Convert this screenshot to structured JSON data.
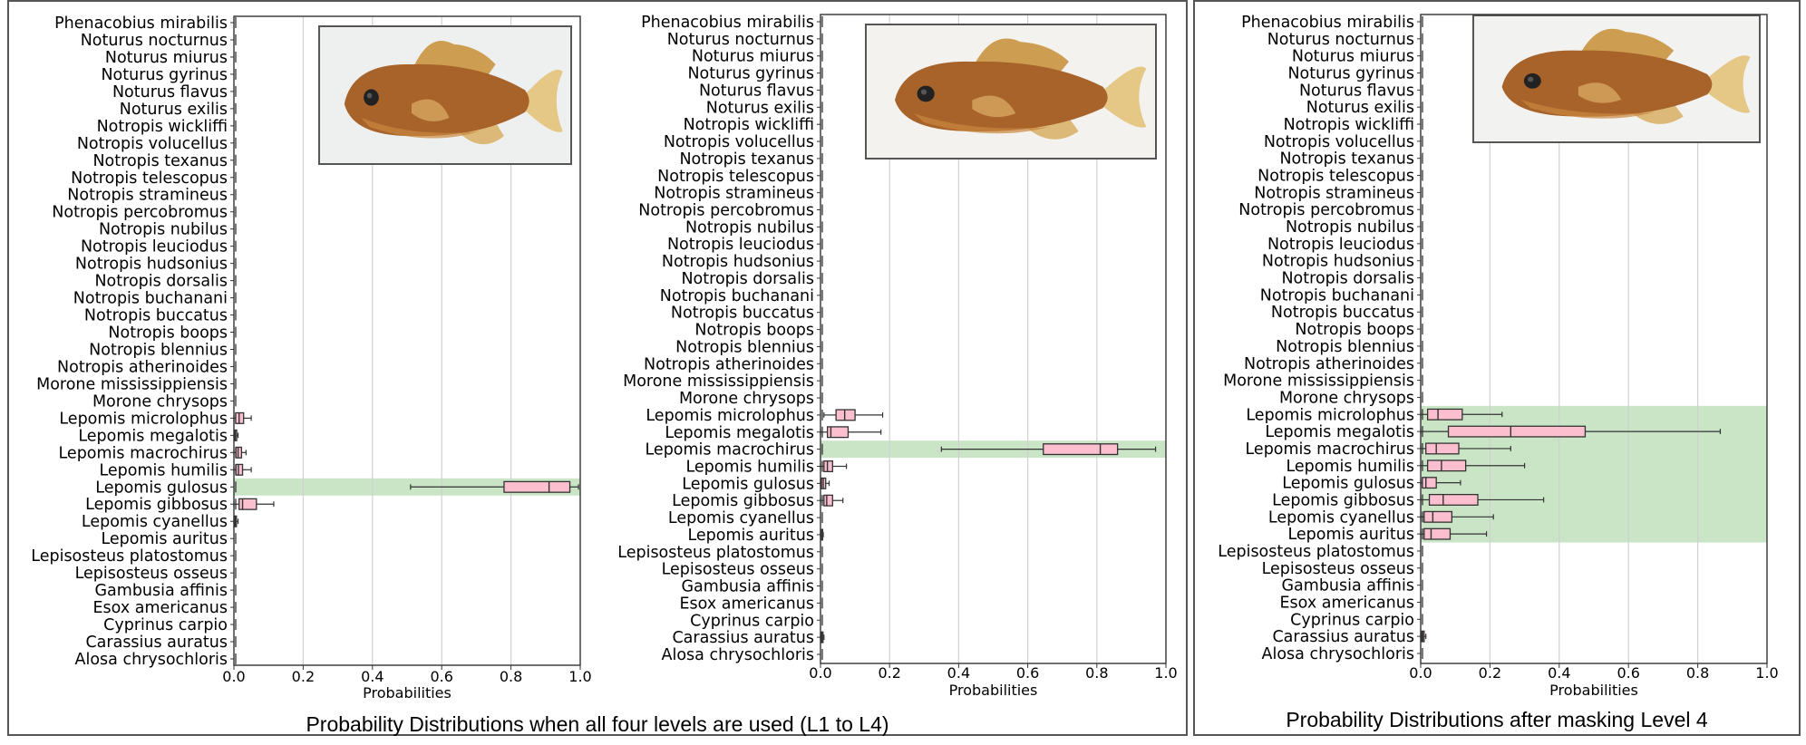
{
  "captions": {
    "left": "Probability Distributions when all four levels are used (L1 to L4)",
    "right": "Probability Distributions after masking Level 4"
  },
  "colors": {
    "box_fill": "#fcbfcf",
    "highlight": "#c9e5c6",
    "grid": "#d0d0d0"
  },
  "species": [
    "Phenacobius mirabilis",
    "Noturus nocturnus",
    "Noturus miurus",
    "Noturus gyrinus",
    "Noturus flavus",
    "Noturus exilis",
    "Notropis wickliffi",
    "Notropis volucellus",
    "Notropis texanus",
    "Notropis telescopus",
    "Notropis stramineus",
    "Notropis percobromus",
    "Notropis nubilus",
    "Notropis leuciodus",
    "Notropis hudsonius",
    "Notropis dorsalis",
    "Notropis buchanani",
    "Notropis buccatus",
    "Notropis boops",
    "Notropis blennius",
    "Notropis atherinoides",
    "Morone mississippiensis",
    "Morone chrysops",
    "Lepomis microlophus",
    "Lepomis megalotis",
    "Lepomis macrochirus",
    "Lepomis humilis",
    "Lepomis gulosus",
    "Lepomis gibbosus",
    "Lepomis cyanellus",
    "Lepomis auritus",
    "Lepisosteus platostomus",
    "Lepisosteus osseus",
    "Gambusia affinis",
    "Esox americanus",
    "Cyprinus carpio",
    "Carassius auratus",
    "Alosa chrysochloris"
  ],
  "chart_data": [
    {
      "type": "boxplot",
      "orientation": "horizontal",
      "xlabel": "Probabilities",
      "xlim": [
        0,
        1
      ],
      "xticks": [
        "0.0",
        "0.2",
        "0.4",
        "0.6",
        "0.8",
        "1.0"
      ],
      "grid": "vertical",
      "highlighted": [
        "Lepomis gulosus"
      ],
      "boxes": [
        {
          "species": "Lepomis microlophus",
          "whislo": 0.0,
          "q1": 0.005,
          "med": 0.015,
          "q3": 0.028,
          "whishi": 0.05
        },
        {
          "species": "Lepomis megalotis",
          "whislo": 0.0,
          "q1": 0.002,
          "med": 0.004,
          "q3": 0.008,
          "whishi": 0.012
        },
        {
          "species": "Lepomis macrochirus",
          "whislo": 0.0,
          "q1": 0.006,
          "med": 0.012,
          "q3": 0.022,
          "whishi": 0.035
        },
        {
          "species": "Lepomis humilis",
          "whislo": 0.0,
          "q1": 0.006,
          "med": 0.013,
          "q3": 0.025,
          "whishi": 0.05
        },
        {
          "species": "Lepomis gulosus",
          "whislo": 0.51,
          "q1": 0.78,
          "med": 0.91,
          "q3": 0.97,
          "whishi": 0.995
        },
        {
          "species": "Lepomis gibbosus",
          "whislo": 0.0,
          "q1": 0.015,
          "med": 0.025,
          "q3": 0.065,
          "whishi": 0.115
        },
        {
          "species": "Lepomis cyanellus",
          "whislo": 0.0,
          "q1": 0.002,
          "med": 0.004,
          "q3": 0.007,
          "whishi": 0.012
        }
      ]
    },
    {
      "type": "boxplot",
      "orientation": "horizontal",
      "xlabel": "Probabilities",
      "xlim": [
        0,
        1
      ],
      "xticks": [
        "0.0",
        "0.2",
        "0.4",
        "0.6",
        "0.8",
        "1.0"
      ],
      "grid": "vertical",
      "highlighted": [
        "Lepomis macrochirus"
      ],
      "boxes": [
        {
          "species": "Lepomis microlophus",
          "whislo": 0.01,
          "q1": 0.045,
          "med": 0.07,
          "q3": 0.1,
          "whishi": 0.18
        },
        {
          "species": "Lepomis megalotis",
          "whislo": 0.0,
          "q1": 0.02,
          "med": 0.03,
          "q3": 0.08,
          "whishi": 0.175
        },
        {
          "species": "Lepomis macrochirus",
          "whislo": 0.35,
          "q1": 0.645,
          "med": 0.81,
          "q3": 0.86,
          "whishi": 0.97
        },
        {
          "species": "Lepomis humilis",
          "whislo": 0.0,
          "q1": 0.01,
          "med": 0.02,
          "q3": 0.035,
          "whishi": 0.075
        },
        {
          "species": "Lepomis gulosus",
          "whislo": 0.0,
          "q1": 0.003,
          "med": 0.008,
          "q3": 0.015,
          "whishi": 0.025
        },
        {
          "species": "Lepomis gibbosus",
          "whislo": 0.0,
          "q1": 0.01,
          "med": 0.018,
          "q3": 0.035,
          "whishi": 0.065
        },
        {
          "species": "Lepomis auritus",
          "whislo": 0.0,
          "q1": 0.001,
          "med": 0.003,
          "q3": 0.005,
          "whishi": 0.008
        },
        {
          "species": "Carassius auratus",
          "whislo": 0.0,
          "q1": 0.002,
          "med": 0.004,
          "q3": 0.007,
          "whishi": 0.01
        }
      ]
    },
    {
      "type": "boxplot",
      "orientation": "horizontal",
      "xlabel": "Probabilities",
      "xlim": [
        0,
        1
      ],
      "xticks": [
        "0.0",
        "0.2",
        "0.4",
        "0.6",
        "0.8",
        "1.0"
      ],
      "grid": "vertical",
      "highlighted": [
        "Lepomis microlophus",
        "Lepomis megalotis",
        "Lepomis macrochirus",
        "Lepomis humilis",
        "Lepomis gulosus",
        "Lepomis gibbosus",
        "Lepomis cyanellus",
        "Lepomis auritus"
      ],
      "boxes": [
        {
          "species": "Lepomis microlophus",
          "whislo": 0.0,
          "q1": 0.02,
          "med": 0.05,
          "q3": 0.12,
          "whishi": 0.235
        },
        {
          "species": "Lepomis megalotis",
          "whislo": 0.0,
          "q1": 0.08,
          "med": 0.26,
          "q3": 0.475,
          "whishi": 0.865
        },
        {
          "species": "Lepomis macrochirus",
          "whislo": 0.0,
          "q1": 0.015,
          "med": 0.045,
          "q3": 0.11,
          "whishi": 0.26
        },
        {
          "species": "Lepomis humilis",
          "whislo": 0.0,
          "q1": 0.02,
          "med": 0.06,
          "q3": 0.13,
          "whishi": 0.3
        },
        {
          "species": "Lepomis gulosus",
          "whislo": 0.0,
          "q1": 0.005,
          "med": 0.015,
          "q3": 0.045,
          "whishi": 0.115
        },
        {
          "species": "Lepomis gibbosus",
          "whislo": 0.0,
          "q1": 0.025,
          "med": 0.065,
          "q3": 0.165,
          "whishi": 0.355
        },
        {
          "species": "Lepomis cyanellus",
          "whislo": 0.0,
          "q1": 0.01,
          "med": 0.035,
          "q3": 0.09,
          "whishi": 0.21
        },
        {
          "species": "Lepomis auritus",
          "whislo": 0.0,
          "q1": 0.01,
          "med": 0.03,
          "q3": 0.085,
          "whishi": 0.19
        },
        {
          "species": "Carassius auratus",
          "whislo": 0.0,
          "q1": 0.003,
          "med": 0.006,
          "q3": 0.01,
          "whishi": 0.015
        }
      ]
    }
  ]
}
